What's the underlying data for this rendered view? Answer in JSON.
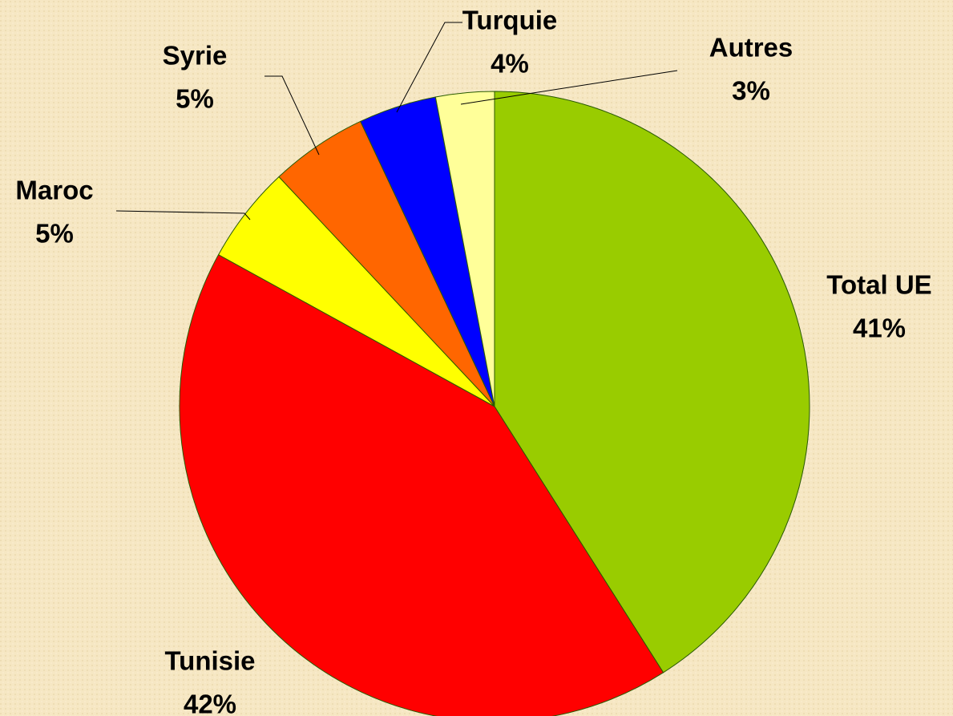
{
  "chart_data": {
    "type": "pie",
    "categories": [
      "Total UE",
      "Tunisie",
      "Maroc",
      "Syrie",
      "Turquie",
      "Autres"
    ],
    "values": [
      41,
      42,
      5,
      5,
      4,
      3
    ],
    "value_labels": [
      "41%",
      "42%",
      "5%",
      "5%",
      "4%",
      "3%"
    ],
    "colors": [
      "#99cc00",
      "#ff0000",
      "#ffff00",
      "#ff6600",
      "#0000ff",
      "#ffff99"
    ]
  }
}
